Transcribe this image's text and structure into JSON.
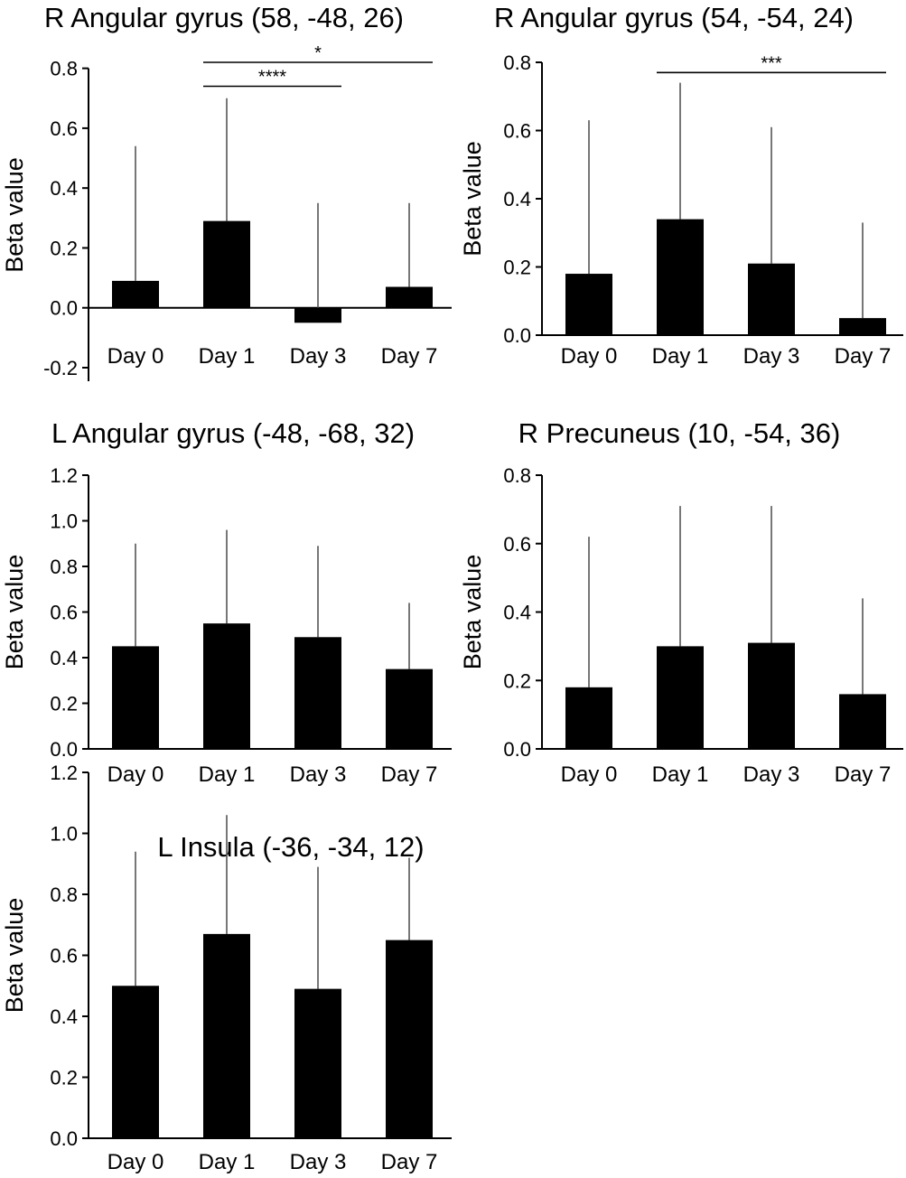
{
  "chart_data": [
    {
      "type": "bar",
      "title": "R Angular gyrus (58, -48, 26)",
      "ylabel": "Beta value",
      "categories": [
        "Day 0",
        "Day 1",
        "Day 3",
        "Day 7"
      ],
      "values": [
        0.09,
        0.29,
        -0.05,
        0.07
      ],
      "error_upper": [
        0.54,
        0.7,
        0.35,
        0.35
      ],
      "ylim": [
        -0.25,
        0.82
      ],
      "yticks": [
        -0.2,
        0.0,
        0.2,
        0.4,
        0.6,
        0.8
      ],
      "ytick_labels": [
        "-0.2",
        "0.0",
        "0.2",
        "0.4",
        "0.6",
        "0.8"
      ],
      "significance": [
        {
          "from": 1,
          "to": 3,
          "level": 0.82,
          "label": "*"
        },
        {
          "from": 1,
          "to": 2,
          "level": 0.74,
          "label": "****"
        }
      ]
    },
    {
      "type": "bar",
      "title": "R Angular gyrus (54, -54, 24)",
      "ylabel": "Beta value",
      "categories": [
        "Day 0",
        "Day 1",
        "Day 3",
        "Day 7"
      ],
      "values": [
        0.18,
        0.34,
        0.21,
        0.05
      ],
      "error_upper": [
        0.63,
        0.74,
        0.61,
        0.33
      ],
      "ylim": [
        0.0,
        0.8
      ],
      "yticks": [
        0.0,
        0.2,
        0.4,
        0.6,
        0.8
      ],
      "ytick_labels": [
        "0.0",
        "0.2",
        "0.4",
        "0.6",
        "0.8"
      ],
      "significance": [
        {
          "from": 1,
          "to": 3,
          "level": 0.77,
          "label": "***"
        }
      ]
    },
    {
      "type": "bar",
      "title": "L Angular gyrus (-48, -68, 32)",
      "ylabel": "Beta value",
      "categories": [
        "Day 0",
        "Day 1",
        "Day 3",
        "Day 7"
      ],
      "values": [
        0.45,
        0.55,
        0.49,
        0.35
      ],
      "error_upper": [
        0.9,
        0.96,
        0.89,
        0.64
      ],
      "ylim": [
        0.0,
        1.2
      ],
      "yticks": [
        0.0,
        0.2,
        0.4,
        0.6,
        0.8,
        1.0,
        1.2
      ],
      "ytick_labels": [
        "0.0",
        "0.2",
        "0.4",
        "0.6",
        "0.8",
        "1.0",
        "1.2"
      ],
      "significance": []
    },
    {
      "type": "bar",
      "title": "R Precuneus (10, -54, 36)",
      "ylabel": "Beta value",
      "categories": [
        "Day 0",
        "Day 1",
        "Day 3",
        "Day 7"
      ],
      "values": [
        0.18,
        0.3,
        0.31,
        0.16
      ],
      "error_upper": [
        0.62,
        0.71,
        0.71,
        0.44
      ],
      "ylim": [
        0.0,
        0.8
      ],
      "yticks": [
        0.0,
        0.2,
        0.4,
        0.6,
        0.8
      ],
      "ytick_labels": [
        "0.0",
        "0.2",
        "0.4",
        "0.6",
        "0.8"
      ],
      "significance": []
    },
    {
      "type": "bar",
      "title": "L Insula (-36, -34, 12)",
      "ylabel": "Beta value",
      "categories": [
        "Day 0",
        "Day 1",
        "Day 3",
        "Day 7"
      ],
      "values": [
        0.5,
        0.67,
        0.49,
        0.65
      ],
      "error_upper": [
        0.94,
        1.06,
        0.89,
        0.92
      ],
      "ylim": [
        0.0,
        1.2
      ],
      "yticks": [
        0.0,
        0.2,
        0.4,
        0.6,
        0.8,
        1.0,
        1.2
      ],
      "ytick_labels": [
        "0.0",
        "0.2",
        "0.4",
        "0.6",
        "0.8",
        "1.0",
        "1.2"
      ],
      "significance": []
    }
  ],
  "colors": {
    "bar": "#000000",
    "error_bar": "#555555",
    "axis": "#000000"
  }
}
